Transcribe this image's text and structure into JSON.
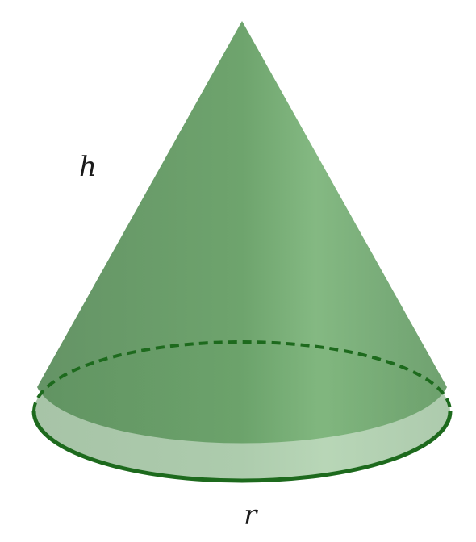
{
  "diagram": {
    "shape": "cone",
    "labels": {
      "height": "h",
      "radius": "r"
    },
    "colors": {
      "fill_dark": "#5f9460",
      "fill_light": "#80b67e",
      "outline": "#1d6a1d"
    }
  }
}
